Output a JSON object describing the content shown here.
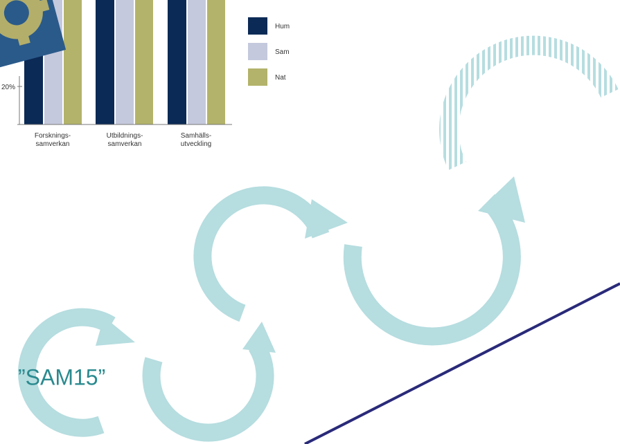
{
  "chart_fragment": {
    "tick": "20%",
    "categories": [
      [
        "Forsknings-",
        "samverkan"
      ],
      [
        "Utbildnings-",
        "samverkan"
      ],
      [
        "Samhälls-",
        "utveckling"
      ]
    ],
    "legend": [
      "Hum",
      "Sam",
      "Nat"
    ]
  },
  "label": "”SAM15”"
}
